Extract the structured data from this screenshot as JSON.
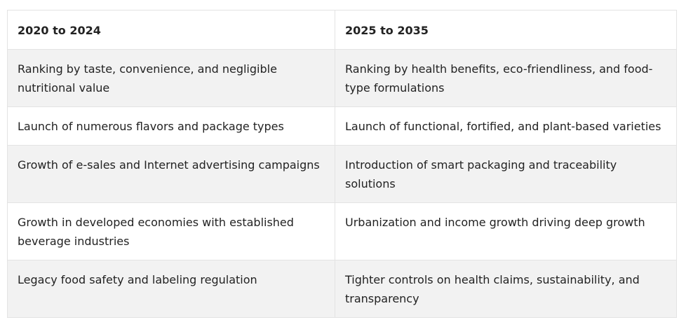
{
  "table": {
    "headers": [
      "2020 to 2024",
      "2025 to 2035"
    ],
    "rows": [
      [
        "Ranking by taste, convenience, and negligible nutritional value",
        "Ranking by health benefits, eco-friendliness, and food-type formulations"
      ],
      [
        "Launch of numerous flavors and package types",
        "Launch of functional, fortified, and plant-based varieties"
      ],
      [
        "Growth of e-sales and Internet advertising campaigns",
        "Introduction of smart packaging and traceability solutions"
      ],
      [
        "Growth in developed economies with established beverage industries",
        "Urbanization and income growth driving deep growth"
      ],
      [
        "Legacy food safety and labeling regulation",
        "Tighter controls on health claims, sustainability, and transparency"
      ]
    ]
  },
  "colors": {
    "stripe": "#f2f2f2",
    "border": "#e3e3e3",
    "text": "#222222"
  }
}
